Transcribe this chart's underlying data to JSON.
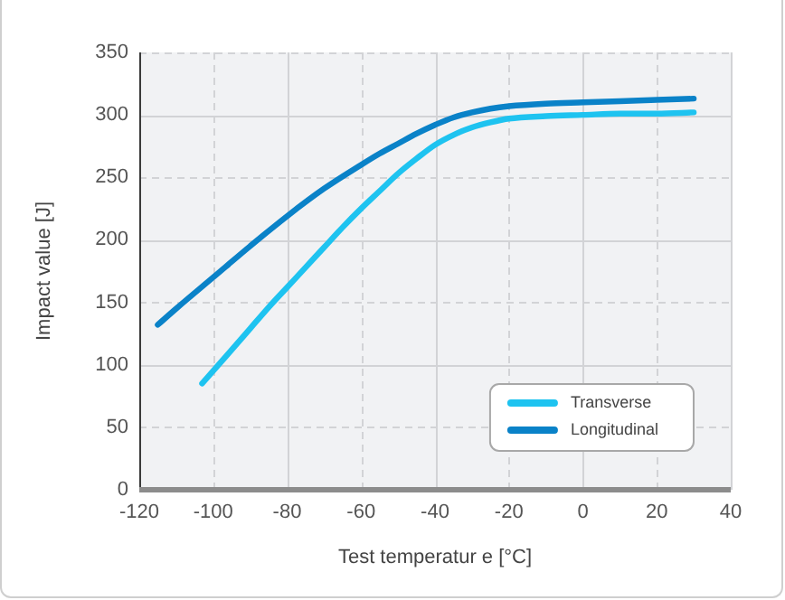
{
  "chart_data": {
    "type": "line",
    "xlabel": "Test temperatur e [°C]",
    "ylabel": "Impact value [J]",
    "xlim": [
      -120,
      40
    ],
    "xticks": [
      -120,
      -100,
      -80,
      -60,
      -40,
      -20,
      0,
      20,
      40
    ],
    "ylim": [
      0,
      350
    ],
    "yticks": [
      0,
      50,
      100,
      150,
      200,
      250,
      300,
      350
    ],
    "grid": true,
    "legend": "bottom right",
    "series": [
      {
        "name": "Transverse",
        "color": "#1ec3f0",
        "x": [
          -103,
          -95,
          -90,
          -85,
          -80,
          -75,
          -70,
          -65,
          -60,
          -55,
          -50,
          -45,
          -40,
          -35,
          -30,
          -25,
          -20,
          -10,
          0,
          10,
          20,
          30
        ],
        "values": [
          85,
          112,
          129,
          146,
          162,
          178,
          194,
          210,
          225,
          239,
          253,
          265,
          276,
          284,
          290,
          294,
          297,
          299,
          300,
          301,
          301,
          302
        ]
      },
      {
        "name": "Longitudinal",
        "color": "#0a82c8",
        "x": [
          -115,
          -110,
          -100,
          -90,
          -80,
          -70,
          -60,
          -55,
          -50,
          -45,
          -40,
          -35,
          -30,
          -25,
          -20,
          -10,
          0,
          10,
          20,
          30
        ],
        "values": [
          132,
          145,
          170,
          195,
          219,
          241,
          260,
          269,
          277,
          285,
          292,
          298,
          302,
          305,
          307,
          309,
          310,
          311,
          312,
          313
        ]
      }
    ]
  }
}
